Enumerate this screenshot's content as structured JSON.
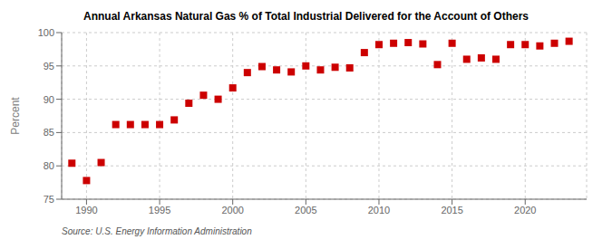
{
  "chart_data": {
    "type": "scatter",
    "title": "Annual Arkansas Natural Gas % of Total Industrial Delivered for the Account of Others",
    "y_label": "Percent",
    "annotations": [
      "Source: U.S. Energy Information Administration"
    ],
    "x": [
      1989,
      1990,
      1991,
      1992,
      1993,
      1994,
      1995,
      1996,
      1997,
      1998,
      1999,
      2000,
      2001,
      2002,
      2003,
      2004,
      2005,
      2006,
      2007,
      2008,
      2009,
      2010,
      2011,
      2012,
      2013,
      2014,
      2015,
      2016,
      2017,
      2018,
      2019,
      2020,
      2021,
      2022,
      2023
    ],
    "values": [
      80.4,
      77.8,
      80.5,
      86.2,
      86.2,
      86.2,
      86.2,
      86.9,
      89.4,
      90.6,
      90.0,
      91.7,
      94.0,
      94.9,
      94.4,
      94.1,
      95.0,
      94.4,
      94.8,
      94.7,
      97.0,
      98.2,
      98.4,
      98.5,
      98.3,
      95.2,
      98.4,
      96.0,
      96.2,
      96.0,
      98.2,
      98.2,
      98.0,
      98.4,
      98.7
    ],
    "color": "#cc0000",
    "marker": "square",
    "xlim": [
      1988.3,
      2024.2
    ],
    "xticks": [
      1990,
      1995,
      2000,
      2005,
      2010,
      2015,
      2020
    ],
    "ylim": [
      75,
      100
    ],
    "yticks": [
      75,
      80,
      85,
      90,
      95,
      100
    ],
    "grid": true
  }
}
